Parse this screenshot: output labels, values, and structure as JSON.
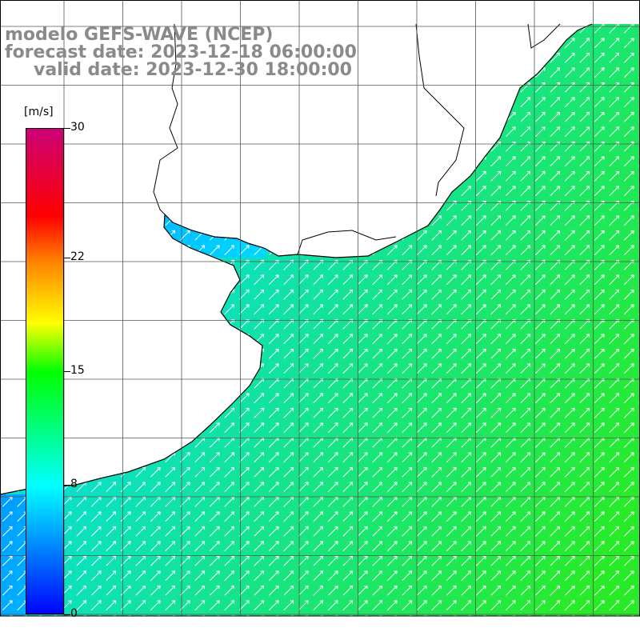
{
  "title": {
    "line1": "modelo GEFS-WAVE (NCEP)",
    "line2": "forecast date: 2023-12-18 06:00:00",
    "line3": "valid date: 2023-12-30 18:00:00"
  },
  "colorbar": {
    "units": "[m/s]",
    "min": 0,
    "max": 30,
    "ticks": [
      {
        "value": 30,
        "label": "30"
      },
      {
        "value": 22,
        "label": "22"
      },
      {
        "value": 15,
        "label": "15"
      },
      {
        "value": 8,
        "label": "8"
      },
      {
        "value": 0,
        "label": "0"
      }
    ],
    "colors": [
      "#0000ff",
      "#00ffff",
      "#00ff00",
      "#ffff00",
      "#ff7f00",
      "#ff0000",
      "#cc0077"
    ]
  },
  "map": {
    "land_color": "#ffffff",
    "grid_color": "#000000",
    "arrow_color": "#ffffff",
    "field": "wind speed and direction over sea"
  }
}
